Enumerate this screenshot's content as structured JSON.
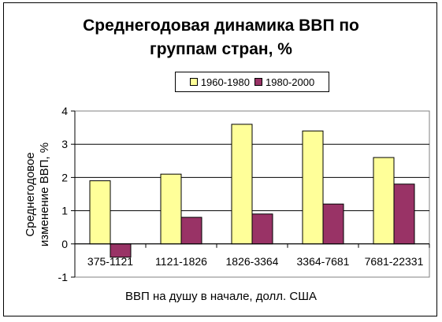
{
  "chart_data": {
    "type": "bar",
    "title_lines": [
      "Среднегодовая динамика ВВП по",
      "группам стран, %"
    ],
    "xlabel": "ВВП на душу в начале, долл. США",
    "ylabel_lines": [
      "Среднегодовое",
      "изменение ВВП, %"
    ],
    "categories": [
      "375-1121",
      "1121-1826",
      "1826-3364",
      "3364-7681",
      "7681-22331"
    ],
    "series": [
      {
        "name": "1960-1980",
        "color": "#ffff99",
        "values": [
          1.9,
          2.1,
          3.6,
          3.4,
          2.6
        ]
      },
      {
        "name": "1980-2000",
        "color": "#993366",
        "values": [
          -0.4,
          0.8,
          0.9,
          1.2,
          1.8
        ]
      }
    ],
    "ylim": [
      -1,
      4
    ],
    "yticks": [
      "-1",
      "0",
      "1",
      "2",
      "3",
      "4"
    ],
    "grid": true,
    "legend_position": "top"
  }
}
